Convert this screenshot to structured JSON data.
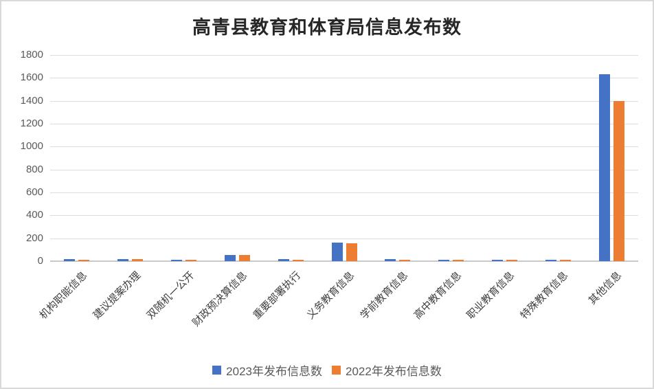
{
  "chart_data": {
    "type": "bar",
    "title": "高青县教育和体育局信息发布数",
    "categories": [
      "机构职能信息",
      "建议提案办理",
      "双随机一公开",
      "财政预决算信息",
      "重要部署执行",
      "义务教育信息",
      "学前教育信息",
      "高中教育信息",
      "职业教育信息",
      "特殊教育信息",
      "其他信息"
    ],
    "series": [
      {
        "name": "2023年发布信息数",
        "color": "#4472C4",
        "values": [
          20,
          20,
          12,
          55,
          20,
          160,
          20,
          12,
          12,
          12,
          1630
        ]
      },
      {
        "name": "2022年发布信息数",
        "color": "#ED7D31",
        "values": [
          10,
          18,
          8,
          55,
          15,
          158,
          12,
          10,
          10,
          10,
          1400
        ]
      }
    ],
    "xlabel": "",
    "ylabel": "",
    "ylim": [
      0,
      1800
    ],
    "y_tick_step": 200,
    "y_ticks": [
      "0",
      "200",
      "400",
      "600",
      "800",
      "1000",
      "1200",
      "1400",
      "1600",
      "1800"
    ],
    "grid": "horizontal",
    "legend_position": "bottom"
  },
  "colors": {
    "series_2023": "#4472C4",
    "series_2022": "#ED7D31",
    "gridline": "#dcdcdc",
    "axis_text": "#595959",
    "category_text": "#404040",
    "border": "#d9d9d9"
  }
}
